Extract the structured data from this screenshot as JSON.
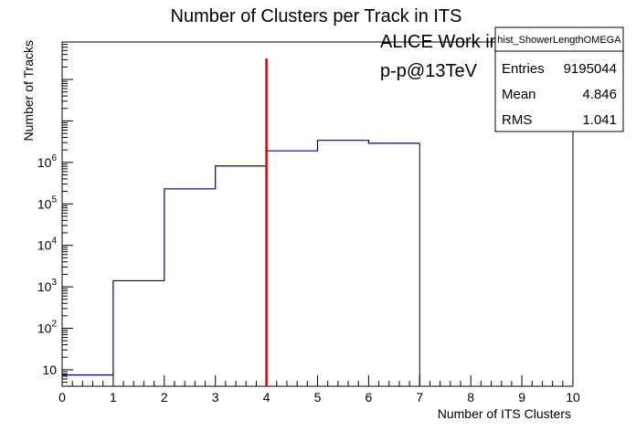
{
  "chart_data": {
    "type": "histogram",
    "title": "Number of Clusters per Track in ITS",
    "xlabel": "Number of ITS Clusters",
    "ylabel": "Number of Tracks",
    "xlim": [
      0,
      10
    ],
    "ylim": [
      4,
      800000000
    ],
    "log_y": true,
    "grid": false,
    "x_ticks": [
      "0",
      "1",
      "2",
      "3",
      "4",
      "5",
      "6",
      "7",
      "8",
      "9",
      "10"
    ],
    "y_ticks": [
      {
        "value": 10,
        "label": "10"
      },
      {
        "value": 100,
        "label": "10^2"
      },
      {
        "value": 1000,
        "label": "10^3"
      },
      {
        "value": 10000,
        "label": "10^4"
      },
      {
        "value": 100000,
        "label": "10^5"
      },
      {
        "value": 1000000,
        "label": "10^6"
      }
    ],
    "bins": [
      {
        "x0": 0,
        "x1": 1,
        "value": 7.5
      },
      {
        "x0": 1,
        "x1": 2,
        "value": 1400
      },
      {
        "x0": 2,
        "x1": 3,
        "value": 230000
      },
      {
        "x0": 3,
        "x1": 4,
        "value": 820000
      },
      {
        "x0": 4,
        "x1": 5,
        "value": 1900000
      },
      {
        "x0": 5,
        "x1": 6,
        "value": 3400000
      },
      {
        "x0": 6,
        "x1": 7,
        "value": 2900000
      },
      {
        "x0": 7,
        "x1": 8,
        "value": 0
      },
      {
        "x0": 8,
        "x1": 9,
        "value": 0
      },
      {
        "x0": 9,
        "x1": 10,
        "value": 0
      }
    ],
    "series_color": "#000080",
    "cut_line": {
      "x": 4,
      "color": "#e00000"
    },
    "annotations": [
      "ALICE Work in Progress",
      "p-p@13TeV"
    ],
    "stats": {
      "title": "hist_ShowerLengthOMEGA",
      "rows": [
        {
          "label": "Entries",
          "value": "9195044"
        },
        {
          "label": "Mean",
          "value": "4.846"
        },
        {
          "label": "RMS",
          "value": "1.041"
        }
      ]
    }
  }
}
